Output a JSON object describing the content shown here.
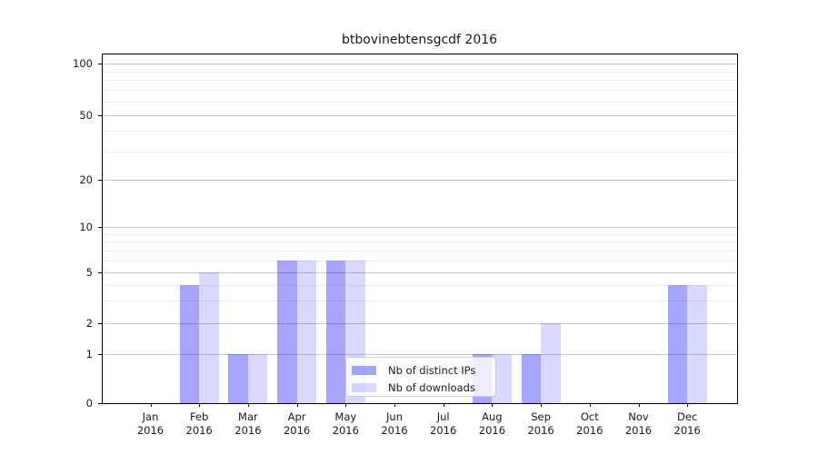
{
  "chart_data": {
    "type": "bar",
    "title": "btbovinebtensgcdf 2016",
    "categories": [
      "Jan",
      "Feb",
      "Mar",
      "Apr",
      "May",
      "Jun",
      "Jul",
      "Aug",
      "Sep",
      "Oct",
      "Nov",
      "Dec"
    ],
    "category_year": "2016",
    "series": [
      {
        "name": "Nb of distinct IPs",
        "color": "rgba(0,0,255,0.35)",
        "values": [
          0,
          4,
          1,
          6,
          6,
          0,
          0,
          1,
          1,
          0,
          0,
          4
        ]
      },
      {
        "name": "Nb of downloads",
        "color": "rgba(0,0,255,0.15)",
        "values": [
          0,
          5,
          1,
          6,
          6,
          0,
          0,
          1,
          2,
          0,
          0,
          4
        ]
      }
    ],
    "y_axis": {
      "scale": "symlog",
      "ticks": [
        0,
        1,
        2,
        5,
        10,
        20,
        50,
        100
      ],
      "minor_ticks": [
        3,
        4,
        6,
        7,
        8,
        9,
        30,
        40,
        60,
        70,
        80,
        90
      ],
      "ylim": [
        0,
        110
      ]
    },
    "grid": true,
    "legend_position": "lower center"
  }
}
